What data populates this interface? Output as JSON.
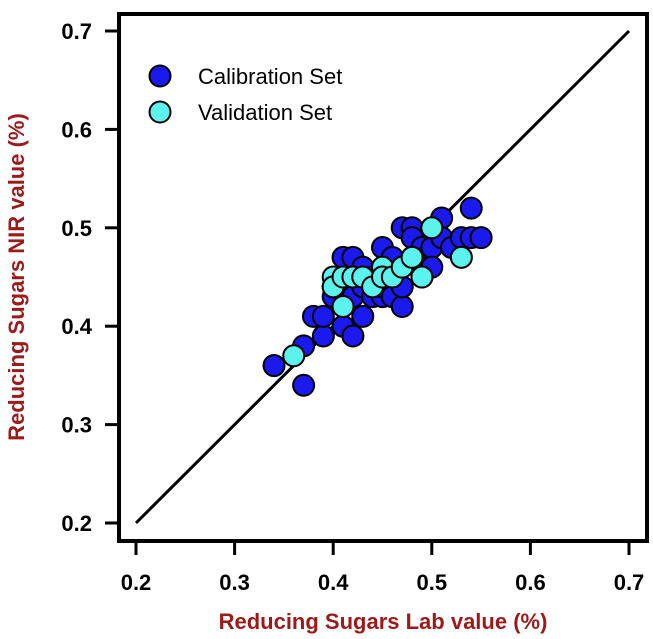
{
  "chart_data": {
    "type": "scatter",
    "xlabel": "Reducing Sugars Lab value (%)",
    "ylabel": "Reducing Sugars NIR value (%)",
    "xlim": [
      0.2,
      0.7
    ],
    "ylim": [
      0.2,
      0.7
    ],
    "x_ticks": [
      "0.2",
      "0.3",
      "0.4",
      "0.5",
      "0.6",
      "0.7"
    ],
    "y_ticks": [
      "0.2",
      "0.3",
      "0.4",
      "0.5",
      "0.6",
      "0.7"
    ],
    "grid": false,
    "legend_position": "top-left",
    "reference_line": {
      "from": [
        0.2,
        0.2
      ],
      "to": [
        0.7,
        0.7
      ]
    },
    "series": [
      {
        "name": "Calibration Set",
        "color": "#1a1aee",
        "points": [
          [
            0.34,
            0.36
          ],
          [
            0.37,
            0.34
          ],
          [
            0.37,
            0.38
          ],
          [
            0.38,
            0.41
          ],
          [
            0.39,
            0.39
          ],
          [
            0.39,
            0.41
          ],
          [
            0.4,
            0.43
          ],
          [
            0.4,
            0.44
          ],
          [
            0.41,
            0.4
          ],
          [
            0.41,
            0.47
          ],
          [
            0.41,
            0.45
          ],
          [
            0.42,
            0.39
          ],
          [
            0.42,
            0.47
          ],
          [
            0.42,
            0.43
          ],
          [
            0.43,
            0.41
          ],
          [
            0.43,
            0.46
          ],
          [
            0.43,
            0.44
          ],
          [
            0.44,
            0.43
          ],
          [
            0.44,
            0.45
          ],
          [
            0.45,
            0.43
          ],
          [
            0.45,
            0.44
          ],
          [
            0.45,
            0.48
          ],
          [
            0.46,
            0.43
          ],
          [
            0.46,
            0.47
          ],
          [
            0.46,
            0.45
          ],
          [
            0.47,
            0.42
          ],
          [
            0.47,
            0.44
          ],
          [
            0.47,
            0.46
          ],
          [
            0.47,
            0.5
          ],
          [
            0.48,
            0.5
          ],
          [
            0.48,
            0.49
          ],
          [
            0.48,
            0.47
          ],
          [
            0.49,
            0.48
          ],
          [
            0.49,
            0.45
          ],
          [
            0.5,
            0.48
          ],
          [
            0.5,
            0.46
          ],
          [
            0.51,
            0.51
          ],
          [
            0.51,
            0.49
          ],
          [
            0.52,
            0.48
          ],
          [
            0.53,
            0.49
          ],
          [
            0.54,
            0.52
          ],
          [
            0.54,
            0.49
          ],
          [
            0.55,
            0.49
          ]
        ]
      },
      {
        "name": "Validation Set",
        "color": "#5cf2ee",
        "points": [
          [
            0.36,
            0.37
          ],
          [
            0.4,
            0.45
          ],
          [
            0.4,
            0.44
          ],
          [
            0.41,
            0.42
          ],
          [
            0.41,
            0.45
          ],
          [
            0.42,
            0.45
          ],
          [
            0.43,
            0.45
          ],
          [
            0.44,
            0.44
          ],
          [
            0.45,
            0.46
          ],
          [
            0.45,
            0.45
          ],
          [
            0.46,
            0.45
          ],
          [
            0.47,
            0.46
          ],
          [
            0.48,
            0.47
          ],
          [
            0.49,
            0.45
          ],
          [
            0.5,
            0.5
          ],
          [
            0.53,
            0.47
          ]
        ]
      }
    ]
  },
  "colors": {
    "axis_title": "#9b1b1b",
    "axis": "#000000",
    "marker_outline": "#000000"
  }
}
